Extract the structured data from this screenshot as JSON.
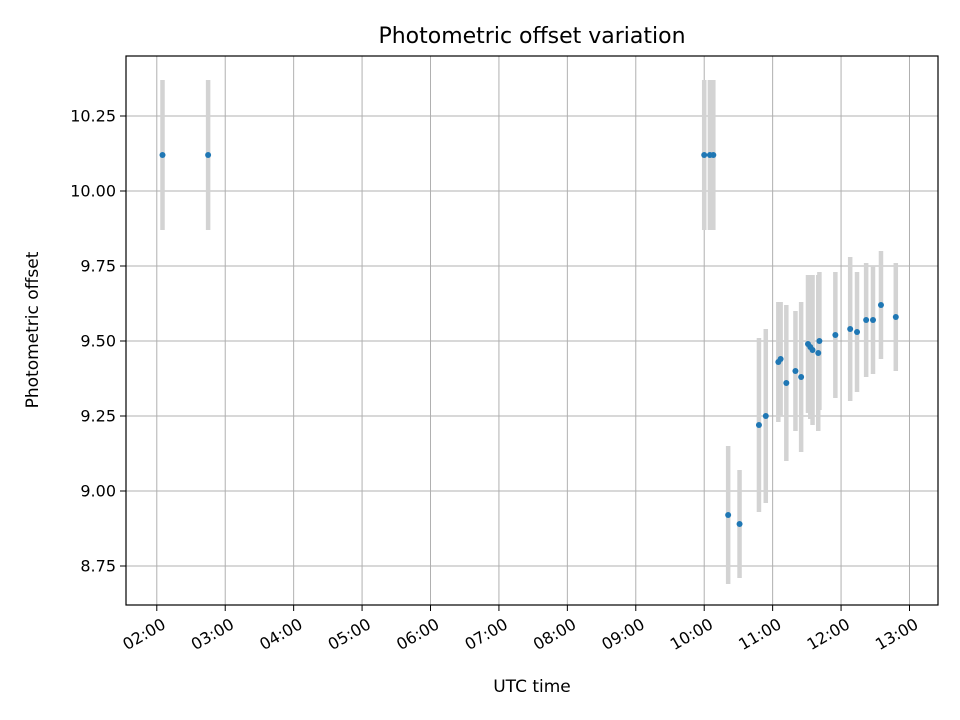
{
  "chart_data": {
    "type": "scatter",
    "title": "Photometric offset variation",
    "xlabel": "UTC time",
    "ylabel": "Photometric offset",
    "xlim": [
      "01:33",
      "13:25"
    ],
    "ylim": [
      8.62,
      10.45
    ],
    "x_ticks": [
      "02:00",
      "03:00",
      "04:00",
      "05:00",
      "06:00",
      "07:00",
      "08:00",
      "09:00",
      "10:00",
      "11:00",
      "12:00",
      "13:00"
    ],
    "y_ticks": [
      "8.75",
      "9.00",
      "9.25",
      "9.50",
      "9.75",
      "10.00",
      "10.25"
    ],
    "grid": true,
    "colors": {
      "point": "#1f77b4",
      "errorbar": "#d3d3d3",
      "grid": "#b0b0b0"
    },
    "series": [
      {
        "points": [
          {
            "x": "02:05",
            "y": 10.12,
            "err": 0.25
          },
          {
            "x": "02:45",
            "y": 10.12,
            "err": 0.25
          },
          {
            "x": "10:00",
            "y": 10.12,
            "err": 0.25
          },
          {
            "x": "10:05",
            "y": 10.12,
            "err": 0.25
          },
          {
            "x": "10:08",
            "y": 10.12,
            "err": 0.25
          },
          {
            "x": "10:21",
            "y": 8.92,
            "err": 0.23
          },
          {
            "x": "10:31",
            "y": 8.89,
            "err": 0.18
          },
          {
            "x": "10:48",
            "y": 9.22,
            "err": 0.29
          },
          {
            "x": "10:54",
            "y": 9.25,
            "err": 0.29
          },
          {
            "x": "11:05",
            "y": 9.43,
            "err": 0.2
          },
          {
            "x": "11:07",
            "y": 9.44,
            "err": 0.19
          },
          {
            "x": "11:12",
            "y": 9.36,
            "err": 0.26
          },
          {
            "x": "11:20",
            "y": 9.4,
            "err": 0.2
          },
          {
            "x": "11:25",
            "y": 9.38,
            "err": 0.25
          },
          {
            "x": "11:31",
            "y": 9.49,
            "err": 0.23
          },
          {
            "x": "11:33",
            "y": 9.48,
            "err": 0.24
          },
          {
            "x": "11:35",
            "y": 9.47,
            "err": 0.25
          },
          {
            "x": "11:40",
            "y": 9.46,
            "err": 0.26
          },
          {
            "x": "11:41",
            "y": 9.5,
            "err": 0.23
          },
          {
            "x": "11:55",
            "y": 9.52,
            "err": 0.21
          },
          {
            "x": "12:08",
            "y": 9.54,
            "err": 0.24
          },
          {
            "x": "12:14",
            "y": 9.53,
            "err": 0.2
          },
          {
            "x": "12:22",
            "y": 9.57,
            "err": 0.19
          },
          {
            "x": "12:28",
            "y": 9.57,
            "err": 0.18
          },
          {
            "x": "12:35",
            "y": 9.62,
            "err": 0.18
          },
          {
            "x": "12:48",
            "y": 9.58,
            "err": 0.18
          }
        ]
      }
    ]
  }
}
